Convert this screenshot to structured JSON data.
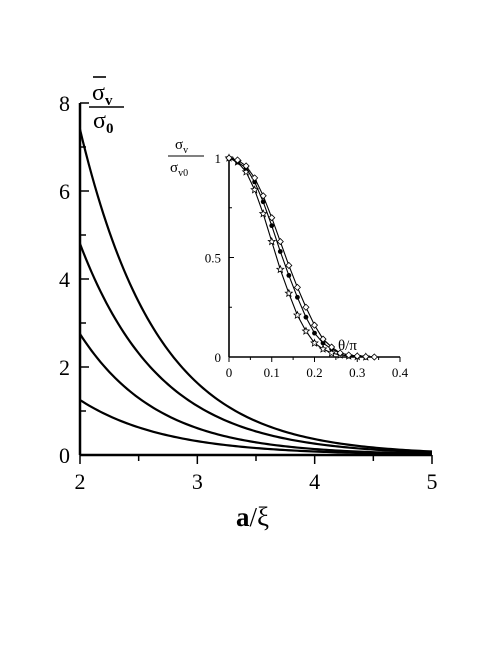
{
  "chart_data": [
    {
      "type": "line",
      "title": "",
      "xlabel_bold": "a",
      "xlabel_rest": "/ξ",
      "ylabel_num": "σ",
      "ylabel_num_sub": "v",
      "ylabel_den": "σ",
      "ylabel_den_sub": "0",
      "xlim": [
        2,
        5
      ],
      "ylim": [
        0,
        8
      ],
      "x_ticks": [
        "2",
        "3",
        "4",
        "5"
      ],
      "y_ticks": [
        "0",
        "2",
        "4",
        "6",
        "8"
      ],
      "grid": false,
      "series": [
        {
          "x": [
            2,
            2.5,
            3,
            3.5,
            4,
            4.5,
            5
          ],
          "y": [
            7.4,
            3.5,
            1.65,
            0.78,
            0.37,
            0.17,
            0.08
          ]
        },
        {
          "x": [
            2,
            2.5,
            3,
            3.5,
            4,
            4.5,
            5
          ],
          "y": [
            4.8,
            2.3,
            1.1,
            0.52,
            0.25,
            0.12,
            0.06
          ]
        },
        {
          "x": [
            2,
            2.5,
            3,
            3.5,
            4,
            4.5,
            5
          ],
          "y": [
            2.75,
            1.3,
            0.62,
            0.3,
            0.14,
            0.07,
            0.03
          ]
        },
        {
          "x": [
            2,
            2.5,
            3,
            3.5,
            4,
            4.5,
            5
          ],
          "y": [
            1.25,
            0.6,
            0.29,
            0.14,
            0.07,
            0.03,
            0.02
          ]
        }
      ]
    },
    {
      "type": "line",
      "title": "",
      "xlabel": "θ/π",
      "ylabel_num": "σ",
      "ylabel_num_sub": "v",
      "ylabel_den": "σ",
      "ylabel_den_sub": "v0",
      "xlim": [
        0,
        0.4
      ],
      "ylim": [
        0,
        1
      ],
      "x_ticks": [
        "0",
        "0.1",
        "0.2",
        "0.3",
        "0.4"
      ],
      "y_ticks": [
        "0",
        "0.5",
        "1"
      ],
      "grid": false,
      "series": [
        {
          "marker": "star",
          "x": [
            0,
            0.02,
            0.04,
            0.06,
            0.08,
            0.1,
            0.12,
            0.14,
            0.16,
            0.18,
            0.2,
            0.22,
            0.24,
            0.26,
            0.28,
            0.3,
            0.32
          ],
          "y": [
            1.0,
            0.98,
            0.93,
            0.84,
            0.72,
            0.58,
            0.44,
            0.32,
            0.21,
            0.13,
            0.07,
            0.04,
            0.02,
            0.01,
            0.005,
            0.002,
            0.0
          ]
        },
        {
          "marker": "dot",
          "x": [
            0,
            0.02,
            0.04,
            0.06,
            0.08,
            0.1,
            0.12,
            0.14,
            0.16,
            0.18,
            0.2,
            0.22,
            0.24,
            0.26,
            0.28,
            0.3,
            0.32,
            0.34
          ],
          "y": [
            1.0,
            0.98,
            0.95,
            0.88,
            0.78,
            0.66,
            0.53,
            0.41,
            0.3,
            0.2,
            0.12,
            0.07,
            0.04,
            0.02,
            0.01,
            0.005,
            0.002,
            0.0
          ]
        },
        {
          "marker": "diamond",
          "x": [
            0,
            0.02,
            0.04,
            0.06,
            0.08,
            0.1,
            0.12,
            0.14,
            0.16,
            0.18,
            0.2,
            0.22,
            0.24,
            0.26,
            0.28,
            0.3,
            0.32,
            0.34
          ],
          "y": [
            1.0,
            0.99,
            0.96,
            0.9,
            0.81,
            0.7,
            0.58,
            0.46,
            0.35,
            0.25,
            0.16,
            0.09,
            0.05,
            0.02,
            0.01,
            0.005,
            0.002,
            0.0
          ]
        }
      ]
    }
  ]
}
